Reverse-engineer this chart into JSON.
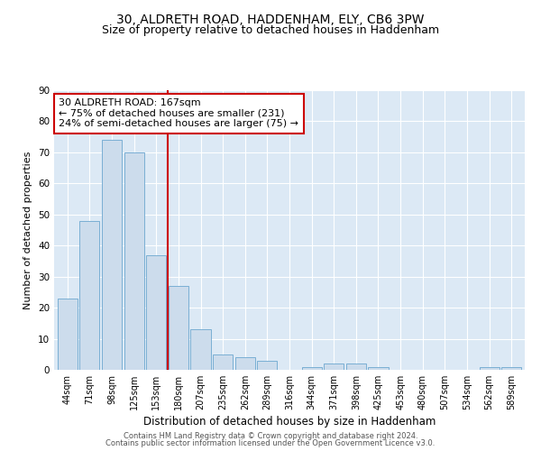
{
  "title1": "30, ALDRETH ROAD, HADDENHAM, ELY, CB6 3PW",
  "title2": "Size of property relative to detached houses in Haddenham",
  "xlabel": "Distribution of detached houses by size in Haddenham",
  "ylabel": "Number of detached properties",
  "categories": [
    "44sqm",
    "71sqm",
    "98sqm",
    "125sqm",
    "153sqm",
    "180sqm",
    "207sqm",
    "235sqm",
    "262sqm",
    "289sqm",
    "316sqm",
    "344sqm",
    "371sqm",
    "398sqm",
    "425sqm",
    "453sqm",
    "480sqm",
    "507sqm",
    "534sqm",
    "562sqm",
    "589sqm"
  ],
  "values": [
    23,
    48,
    74,
    70,
    37,
    27,
    13,
    5,
    4,
    3,
    0,
    1,
    2,
    2,
    1,
    0,
    0,
    0,
    0,
    1,
    1
  ],
  "bar_color": "#ccdcec",
  "bar_edge_color": "#7aafd4",
  "vline_x_idx": 4.5,
  "vline_color": "#cc0000",
  "annotation_text": "30 ALDRETH ROAD: 167sqm\n← 75% of detached houses are smaller (231)\n24% of semi-detached houses are larger (75) →",
  "annotation_box_color": "#cc0000",
  "ylim": [
    0,
    90
  ],
  "yticks": [
    0,
    10,
    20,
    30,
    40,
    50,
    60,
    70,
    80,
    90
  ],
  "footer1": "Contains HM Land Registry data © Crown copyright and database right 2024.",
  "footer2": "Contains public sector information licensed under the Open Government Licence v3.0.",
  "bg_color": "#dce9f5",
  "title1_fontsize": 10,
  "title2_fontsize": 9
}
